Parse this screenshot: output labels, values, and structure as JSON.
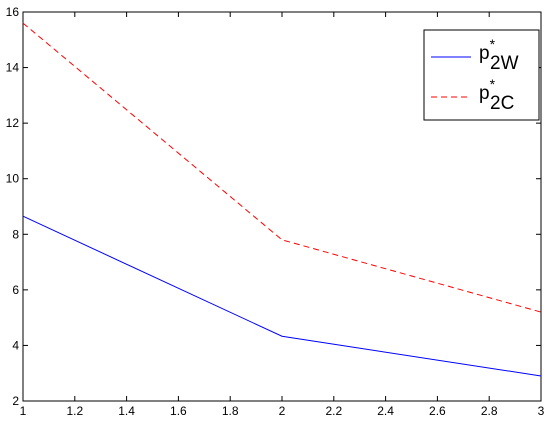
{
  "chart_data": {
    "type": "line",
    "x": [
      1,
      2,
      3
    ],
    "series": [
      {
        "name": "p",
        "name_superscript": "*",
        "name_subscript": "2W",
        "color": "#0000ff",
        "dash": "solid",
        "values": [
          8.65,
          4.33,
          2.9
        ]
      },
      {
        "name": "p",
        "name_superscript": "*",
        "name_subscript": "2C",
        "color": "#ff0000",
        "dash": "dashed",
        "values": [
          15.6,
          7.8,
          5.2
        ]
      }
    ],
    "xlim": [
      1,
      3
    ],
    "xticks": [
      1,
      1.2,
      1.4,
      1.6,
      1.8,
      2,
      2.2,
      2.4,
      2.6,
      2.8,
      3
    ],
    "ylim": [
      2,
      16
    ],
    "yticks": [
      2,
      4,
      6,
      8,
      10,
      12,
      14,
      16
    ],
    "grid": false,
    "legend": "top-right"
  }
}
